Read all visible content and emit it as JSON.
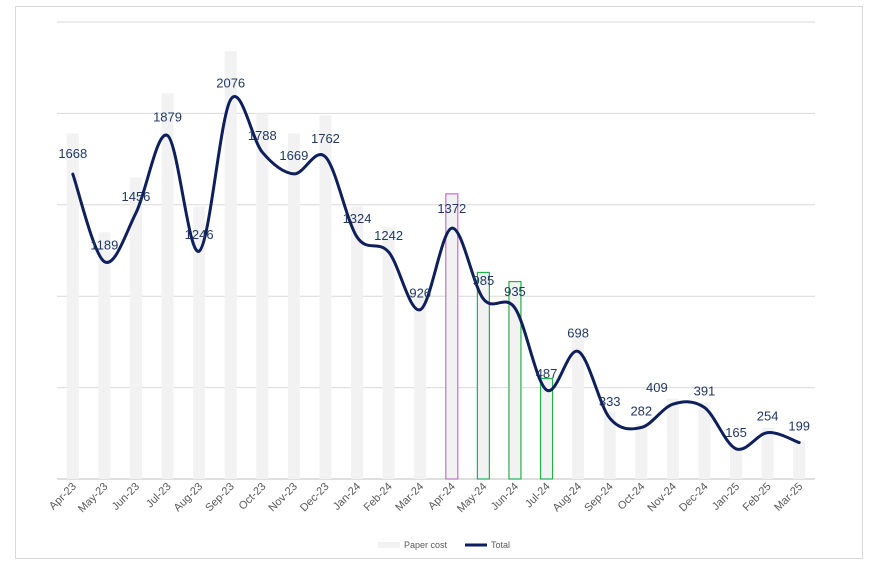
{
  "chart_data": {
    "type": "bar",
    "categories": [
      "Apr-23",
      "May-23",
      "Jun-23",
      "Jul-23",
      "Aug-23",
      "Sep-23",
      "Oct-23",
      "Nov-23",
      "Dec-23",
      "Jan-24",
      "Feb-24",
      "Mar-24",
      "Apr-24",
      "May-24",
      "Jun-24",
      "Jul-24",
      "Aug-24",
      "Sep-24",
      "Oct-24",
      "Nov-24",
      "Dec-24",
      "Jan-25",
      "Feb-25",
      "Mar-25"
    ],
    "series": [
      {
        "name": "Paper cost",
        "type": "bar",
        "color": "#f2f2f2",
        "values": [
          1890,
          1350,
          1650,
          2110,
          1490,
          2340,
          2000,
          1890,
          1990,
          1490,
          1380,
          1010,
          1560,
          1130,
          1080,
          550,
          780,
          370,
          300,
          440,
          420,
          170,
          280,
          210
        ]
      },
      {
        "name": "Total",
        "type": "line",
        "color": "#0e1f5b",
        "values": [
          1668,
          1189,
          1456,
          1879,
          1246,
          2076,
          1788,
          1669,
          1762,
          1324,
          1242,
          926,
          1372,
          985,
          935,
          487,
          698,
          333,
          282,
          409,
          391,
          165,
          254,
          199
        ]
      }
    ],
    "highlights": [
      {
        "category": "Apr-24",
        "color": "#c86dd7"
      },
      {
        "category": "May-24",
        "color": "#22b14c"
      },
      {
        "category": "Jun-24",
        "color": "#22b14c"
      },
      {
        "category": "Jul-24",
        "color": "#22b14c"
      }
    ],
    "ylim": [
      0,
      2500
    ],
    "ystep": 500,
    "grid": true,
    "legend": {
      "position": "bottom",
      "items": [
        "Paper cost",
        "Total"
      ]
    },
    "title": "",
    "xlabel": "",
    "ylabel": ""
  }
}
